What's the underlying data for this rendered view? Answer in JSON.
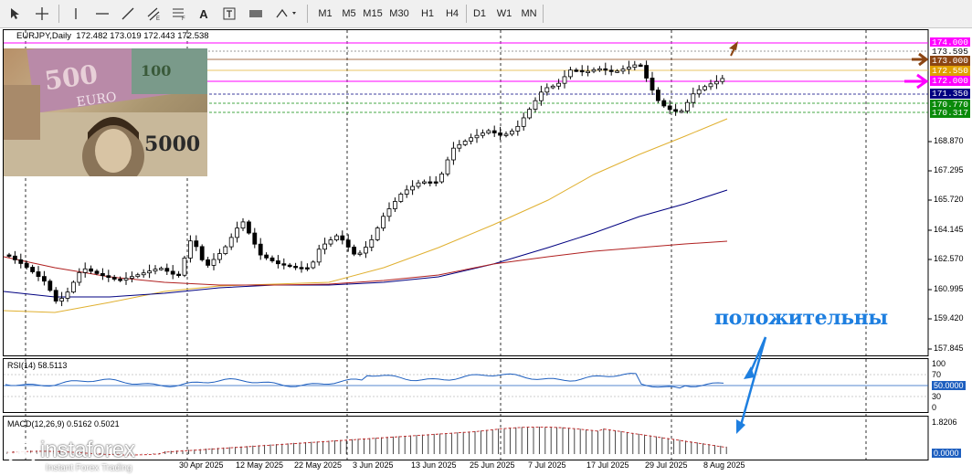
{
  "toolbar": {
    "tools": [
      "cursor-icon",
      "crosshair-icon",
      "vertical-line-icon",
      "horizontal-line-icon",
      "trendline-icon",
      "equidistant-channel-icon",
      "fibonacci-icon",
      "text-icon",
      "text-label-icon",
      "rectangle-icon",
      "shapes-menu-icon"
    ],
    "text_tool": "A",
    "timeframes": [
      "M1",
      "M5",
      "M15",
      "M30",
      "H1",
      "H4",
      "D1",
      "W1",
      "MN"
    ]
  },
  "chart": {
    "symbol_line": "EURJPY,Daily  172.482 173.019 172.443 172.538",
    "price_labels": [
      {
        "text": "174.000",
        "bg": "#ff00ff",
        "fg": "#ffffff"
      },
      {
        "text": "173.595",
        "bg": "#ffffff",
        "fg": "#000000"
      },
      {
        "text": "173.000",
        "bg": "#8b4513",
        "fg": "#ffffff"
      },
      {
        "text": "172.550",
        "bg": "#e0a000",
        "fg": "#ffffff"
      },
      {
        "text": "172.000",
        "bg": "#ff00ff",
        "fg": "#ffffff"
      },
      {
        "text": "171.350",
        "bg": "#000080",
        "fg": "#ffffff"
      },
      {
        "text": "170.770",
        "bg": "#0a8a0a",
        "fg": "#ffffff"
      },
      {
        "text": "170.317",
        "bg": "#0a8a0a",
        "fg": "#ffffff"
      }
    ],
    "price_scale": [
      "168.870",
      "167.295",
      "165.720",
      "164.145",
      "162.570",
      "160.995",
      "159.420",
      "157.845"
    ],
    "annotation": "положительны",
    "rsi": {
      "label": "RSI(14) 58.5113",
      "levels": [
        "100",
        "70",
        "30",
        "0"
      ],
      "current": "50.0000"
    },
    "macd": {
      "label": "MACD(12,26,9) 0.5162 0.5021",
      "scale_top": "1.8206",
      "scale_zero": "0.0000"
    },
    "dates": [
      "30 Apr 2025",
      "12 May 2025",
      "22 May 2025",
      "3 Jun 2025",
      "13 Jun 2025",
      "25 Jun 2025",
      "7 Jul 2025",
      "17 Jul 2025",
      "29 Jul 2025",
      "8 Aug 2025"
    ],
    "watermark": {
      "brand": "instaforex",
      "tagline": "Instant Forex Trading"
    },
    "colors": {
      "ma_fast": "#e0b030",
      "ma_mid": "#000080",
      "ma_slow": "#b02020",
      "arrow_blue": "#1e7fe0",
      "magenta": "#ff00ff",
      "brown": "#8b4513"
    }
  }
}
